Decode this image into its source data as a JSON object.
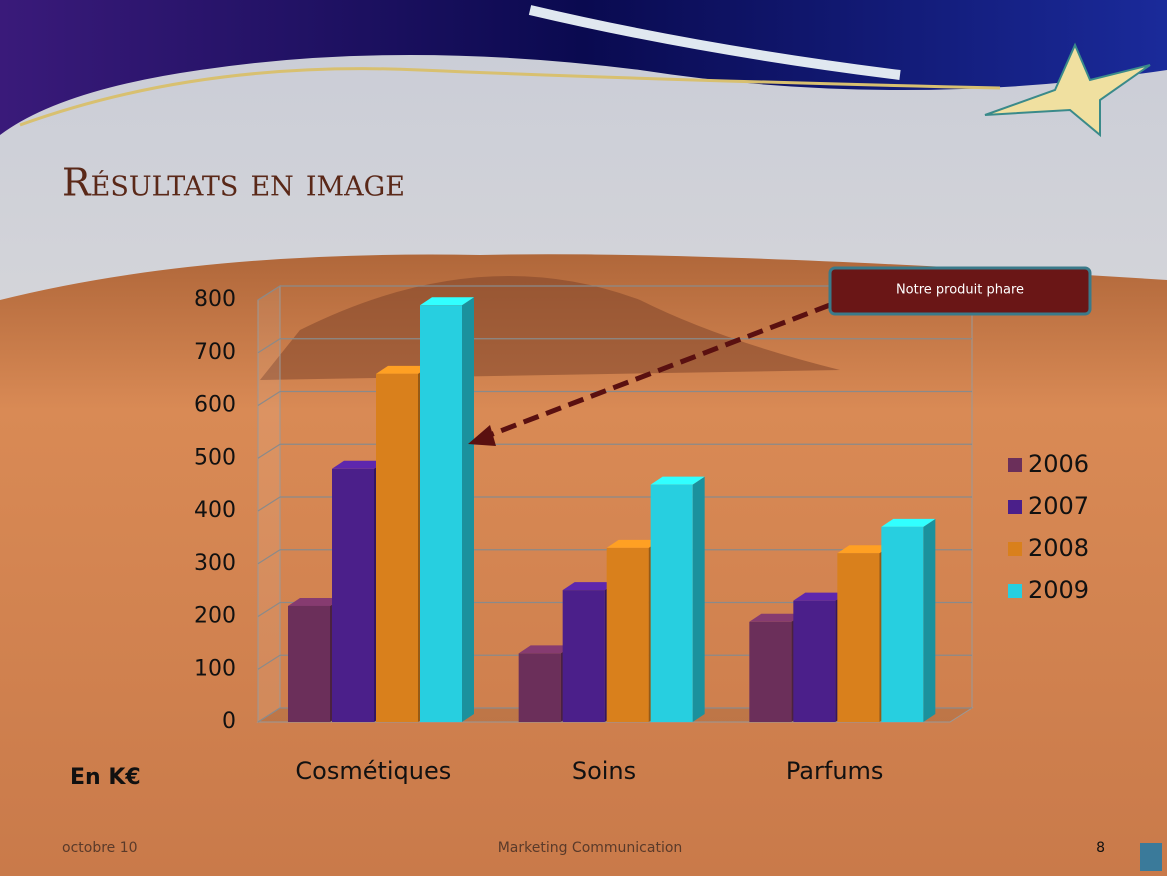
{
  "chart_data": {
    "type": "bar3d",
    "title": "Résultats en image",
    "categories": [
      "Cosmétiques",
      "Soins",
      "Parfums"
    ],
    "series": [
      {
        "name": "2006",
        "color": "#6b2f5a",
        "values": [
          220,
          130,
          190
        ]
      },
      {
        "name": "2007",
        "color": "#4b1f8a",
        "values": [
          480,
          250,
          230
        ]
      },
      {
        "name": "2008",
        "color": "#d9801c",
        "values": [
          660,
          330,
          320
        ]
      },
      {
        "name": "2009",
        "color": "#27cfe0",
        "values": [
          790,
          450,
          370
        ]
      }
    ],
    "ylim": [
      0,
      800
    ],
    "yticks": [
      0,
      100,
      200,
      300,
      400,
      500,
      600,
      700,
      800
    ],
    "grid": true,
    "y_label": "En K€",
    "annotation": "Notre produit phare",
    "footer": {
      "date": "octobre 10",
      "center": "Marketing Communication",
      "page": "8"
    }
  }
}
